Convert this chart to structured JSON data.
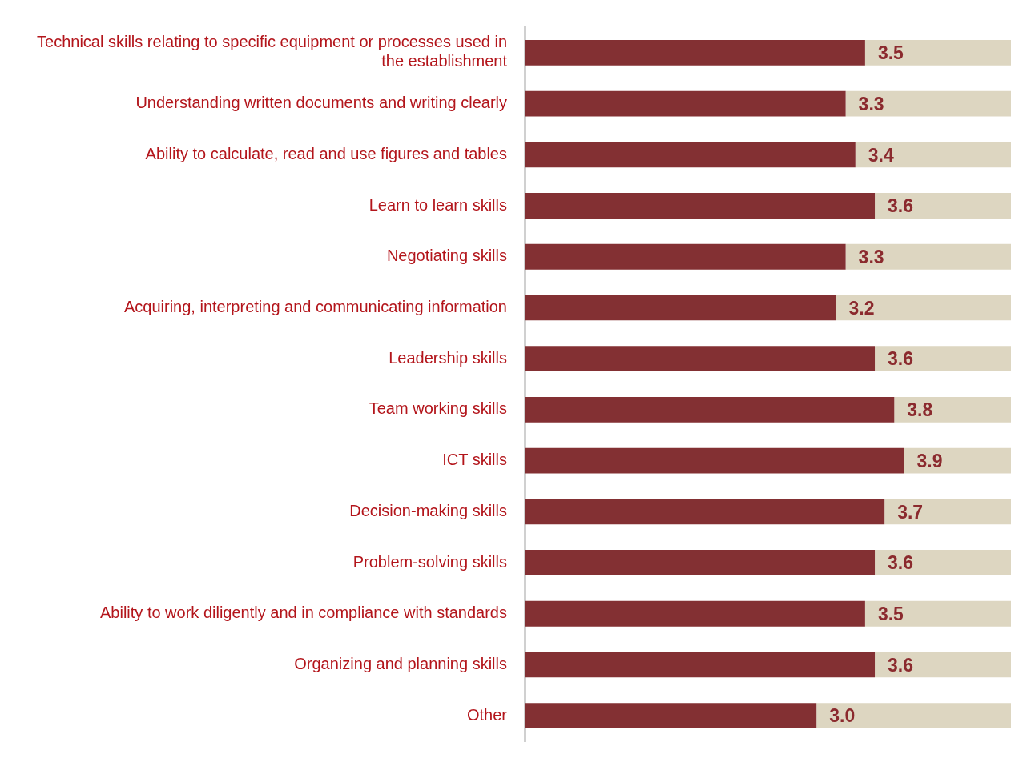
{
  "chart_data": {
    "type": "bar",
    "orientation": "horizontal",
    "stacked": true,
    "categories": [
      "Technical skills relating to specific equipment or processes used in the establishment",
      "Understanding written documents and writing clearly",
      "Ability to calculate, read and use figures and tables",
      "Learn to learn skills",
      "Negotiating skills",
      "Acquiring, interpreting and communicating information",
      "Leadership skills",
      "Team working skills",
      "ICT skills",
      "Decision-making skills",
      "Problem-solving skills",
      "Ability to work diligently and in compliance with standards",
      "Organizing and planning skills",
      "Other"
    ],
    "series": [
      {
        "color": "#833033",
        "values": [
          3.5,
          3.3,
          3.4,
          3.6,
          3.3,
          3.2,
          3.6,
          3.8,
          3.9,
          3.7,
          3.6,
          3.5,
          3.6,
          3.0
        ],
        "value_labels": [
          "3.5",
          "3.3",
          "3.4",
          "3.6",
          "3.3",
          "3.2",
          "3.6",
          "3.8",
          "3.9",
          "3.7",
          "3.6",
          "3.5",
          "3.6",
          "3.0"
        ]
      },
      {
        "color": "#ddd6c1",
        "values": [
          1.5,
          1.7,
          1.6,
          1.4,
          1.7,
          1.8,
          1.4,
          1.2,
          1.1,
          1.3,
          1.4,
          1.5,
          1.4,
          2.0
        ]
      }
    ],
    "xlim": [
      0,
      5
    ],
    "tick_labels": "y",
    "grid": false,
    "legend": false
  }
}
